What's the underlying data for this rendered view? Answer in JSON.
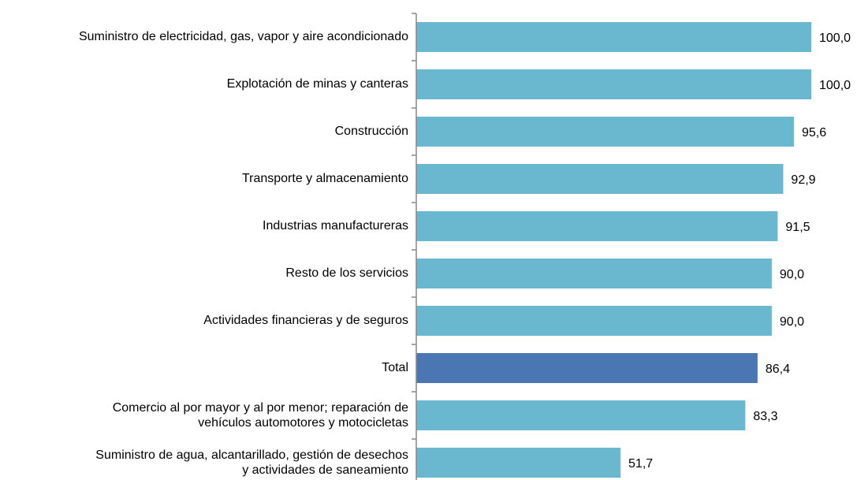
{
  "chart_data": {
    "type": "bar",
    "orientation": "horizontal",
    "categories": [
      "Suministro de electricidad, gas, vapor y aire acondicionado",
      "Explotación de minas y canteras",
      "Construcción",
      "Transporte y almacenamiento",
      "Industrias manufactureras",
      "Resto de los servicios",
      "Actividades financieras y de seguros",
      "Total",
      "Comercio al por mayor y al por menor; reparación de\nvehículos automotores y motocicletas",
      "Suministro de agua, alcantarillado, gestión de desechos\ny actividades de saneamiento"
    ],
    "values": [
      100.0,
      100.0,
      95.6,
      92.9,
      91.5,
      90.0,
      90.0,
      86.4,
      83.3,
      51.7
    ],
    "value_labels": [
      "100,0",
      "100,0",
      "95,6",
      "92,9",
      "91,5",
      "90,0",
      "90,0",
      "86,4",
      "83,3",
      "51,7"
    ],
    "colors": [
      "#6ab8cf",
      "#6ab8cf",
      "#6ab8cf",
      "#6ab8cf",
      "#6ab8cf",
      "#6ab8cf",
      "#6ab8cf",
      "#4a76b4",
      "#6ab8cf",
      "#6ab8cf"
    ],
    "xlim": [
      0,
      100
    ]
  }
}
